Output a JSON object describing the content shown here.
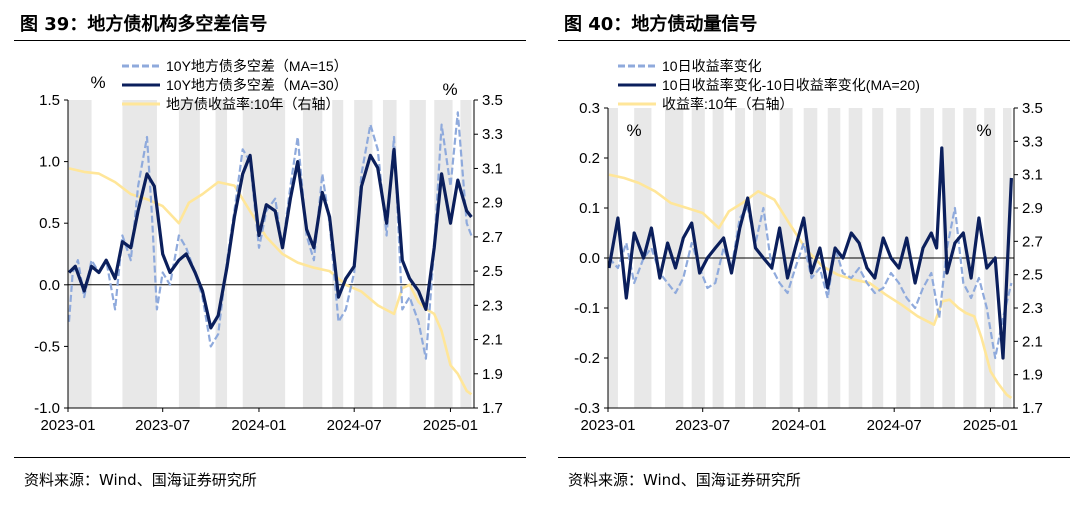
{
  "figures": [
    {
      "id": "fig39",
      "title": "图 39：地方债机构多空差信号",
      "source": "资料来源：Wind、国海证券研究所",
      "unit_left": "%",
      "unit_right": "%",
      "legend": [
        {
          "label": "10Y地方债多空差（MA=15）",
          "color": "#8faadc",
          "style": "dashed"
        },
        {
          "label": "10Y地方债多空差（MA=30）",
          "color": "#0b1f5c",
          "style": "solid"
        },
        {
          "label": "地方债收益率:10年（右轴）",
          "color": "#ffe699",
          "style": "solid"
        }
      ],
      "y_left_ticks": [
        "1.5",
        "1.0",
        "0.5",
        "0.0",
        "-0.5",
        "-1.0"
      ],
      "y_right_ticks": [
        "3.5",
        "3.3",
        "3.1",
        "2.9",
        "2.7",
        "2.5",
        "2.3",
        "2.1",
        "1.9",
        "1.7"
      ],
      "x_ticks": [
        "2023-01",
        "2023-07",
        "2024-01",
        "2024-07",
        "2025-01"
      ]
    },
    {
      "id": "fig40",
      "title": "图 40：地方债动量信号",
      "source": "资料来源：Wind、国海证券研究所",
      "unit_left": "%",
      "unit_right": "%",
      "legend": [
        {
          "label": "10日收益率变化",
          "color": "#8faadc",
          "style": "dashed"
        },
        {
          "label": "10日收益率变化-10日收益率变化(MA=20)",
          "color": "#0b1f5c",
          "style": "solid"
        },
        {
          "label": "收益率:10年（右轴）",
          "color": "#ffe699",
          "style": "solid"
        }
      ],
      "y_left_ticks": [
        "0.3",
        "0.2",
        "0.1",
        "0.0",
        "-0.1",
        "-0.2",
        "-0.3"
      ],
      "y_right_ticks": [
        "3.5",
        "3.3",
        "3.1",
        "2.9",
        "2.7",
        "2.5",
        "2.3",
        "2.1",
        "1.9",
        "1.7"
      ],
      "x_ticks": [
        "2023-01",
        "2023-07",
        "2024-01",
        "2024-07",
        "2025-01"
      ]
    }
  ],
  "chart_data": [
    {
      "type": "line",
      "x_range": [
        "2023-01-01",
        "2025-02-15"
      ],
      "ylim_left": [
        -1.0,
        1.5
      ],
      "ylim_right": [
        1.7,
        3.5
      ],
      "shaded_periods": [
        [
          "2023-01-01",
          "2023-02-15"
        ],
        [
          "2023-04-15",
          "2023-06-20"
        ],
        [
          "2023-08-01",
          "2023-09-10"
        ],
        [
          "2023-10-10",
          "2023-11-01"
        ],
        [
          "2023-12-01",
          "2024-02-20"
        ],
        [
          "2024-03-25",
          "2024-05-01"
        ],
        [
          "2024-05-20",
          "2024-06-10"
        ],
        [
          "2024-07-01",
          "2024-08-05"
        ],
        [
          "2024-08-25",
          "2024-09-20"
        ],
        [
          "2024-10-15",
          "2024-11-15"
        ],
        [
          "2024-12-01",
          "2025-01-05"
        ],
        [
          "2025-01-20",
          "2025-02-10"
        ]
      ],
      "series": [
        {
          "name": "10Y地方债多空差（MA=15）",
          "axis": "left",
          "x": [
            "2023-01-03",
            "2023-01-10",
            "2023-01-20",
            "2023-02-01",
            "2023-02-15",
            "2023-03-01",
            "2023-03-15",
            "2023-04-01",
            "2023-04-15",
            "2023-05-01",
            "2023-05-15",
            "2023-06-01",
            "2023-06-10",
            "2023-06-20",
            "2023-07-01",
            "2023-07-15",
            "2023-08-01",
            "2023-08-15",
            "2023-09-01",
            "2023-09-15",
            "2023-10-01",
            "2023-10-15",
            "2023-11-01",
            "2023-11-15",
            "2023-12-01",
            "2023-12-15",
            "2024-01-01",
            "2024-01-15",
            "2024-02-01",
            "2024-02-15",
            "2024-03-01",
            "2024-03-15",
            "2024-04-01",
            "2024-04-15",
            "2024-05-01",
            "2024-05-15",
            "2024-06-01",
            "2024-06-15",
            "2024-07-01",
            "2024-07-15",
            "2024-08-01",
            "2024-08-15",
            "2024-09-01",
            "2024-09-15",
            "2024-10-01",
            "2024-10-15",
            "2024-11-01",
            "2024-11-15",
            "2024-12-01",
            "2024-12-15",
            "2025-01-01",
            "2025-01-15",
            "2025-02-01",
            "2025-02-10"
          ],
          "values": [
            -0.3,
            0.1,
            0.2,
            -0.1,
            0.2,
            0.1,
            0.2,
            -0.2,
            0.4,
            0.2,
            0.8,
            1.2,
            0.6,
            -0.2,
            0.1,
            0.0,
            0.4,
            0.3,
            0.1,
            -0.1,
            -0.5,
            -0.4,
            0.2,
            0.6,
            1.1,
            1.0,
            0.3,
            0.6,
            0.7,
            0.3,
            0.8,
            1.2,
            0.4,
            0.2,
            0.9,
            0.5,
            -0.3,
            -0.2,
            0.1,
            0.9,
            1.3,
            1.1,
            0.4,
            1.2,
            -0.2,
            -0.1,
            -0.3,
            -0.6,
            0.3,
            1.3,
            0.8,
            1.4,
            0.5,
            0.4
          ]
        },
        {
          "name": "10Y地方债多空差（MA=30）",
          "axis": "left",
          "x": [
            "2023-01-03",
            "2023-01-15",
            "2023-02-01",
            "2023-02-15",
            "2023-03-01",
            "2023-03-15",
            "2023-04-01",
            "2023-04-15",
            "2023-05-01",
            "2023-05-15",
            "2023-06-01",
            "2023-06-15",
            "2023-07-01",
            "2023-07-15",
            "2023-08-01",
            "2023-08-15",
            "2023-09-01",
            "2023-09-15",
            "2023-10-01",
            "2023-10-15",
            "2023-11-01",
            "2023-11-15",
            "2023-12-01",
            "2023-12-15",
            "2024-01-01",
            "2024-01-15",
            "2024-02-01",
            "2024-02-15",
            "2024-03-01",
            "2024-03-15",
            "2024-04-01",
            "2024-04-15",
            "2024-05-01",
            "2024-05-15",
            "2024-06-01",
            "2024-06-15",
            "2024-07-01",
            "2024-07-15",
            "2024-08-01",
            "2024-08-15",
            "2024-09-01",
            "2024-09-15",
            "2024-10-01",
            "2024-10-15",
            "2024-11-01",
            "2024-11-15",
            "2024-12-01",
            "2024-12-15",
            "2025-01-01",
            "2025-01-15",
            "2025-02-01",
            "2025-02-10"
          ],
          "values": [
            0.1,
            0.15,
            -0.05,
            0.15,
            0.1,
            0.2,
            0.05,
            0.35,
            0.3,
            0.6,
            0.9,
            0.8,
            0.25,
            0.1,
            0.2,
            0.25,
            0.1,
            -0.05,
            -0.35,
            -0.25,
            0.15,
            0.55,
            0.9,
            1.05,
            0.4,
            0.65,
            0.6,
            0.3,
            0.7,
            1.0,
            0.45,
            0.3,
            0.75,
            0.55,
            -0.1,
            0.05,
            0.15,
            0.8,
            1.05,
            0.95,
            0.5,
            1.1,
            0.2,
            0.05,
            -0.05,
            -0.2,
            0.3,
            0.9,
            0.5,
            0.85,
            0.6,
            0.55
          ]
        },
        {
          "name": "地方债收益率:10年（右轴）",
          "axis": "right",
          "x": [
            "2023-01-03",
            "2023-02-01",
            "2023-03-01",
            "2023-04-01",
            "2023-05-01",
            "2023-06-01",
            "2023-07-01",
            "2023-08-01",
            "2023-08-20",
            "2023-09-15",
            "2023-10-15",
            "2023-11-15",
            "2023-12-15",
            "2024-01-15",
            "2024-02-15",
            "2024-03-15",
            "2024-04-15",
            "2024-05-15",
            "2024-06-15",
            "2024-07-15",
            "2024-08-15",
            "2024-09-15",
            "2024-10-01",
            "2024-10-15",
            "2024-11-01",
            "2024-11-15",
            "2024-12-01",
            "2024-12-15",
            "2025-01-01",
            "2025-01-15",
            "2025-02-01",
            "2025-02-10"
          ],
          "values": [
            3.1,
            3.08,
            3.07,
            3.02,
            2.95,
            2.92,
            2.88,
            2.78,
            2.9,
            2.95,
            3.02,
            3.0,
            2.85,
            2.7,
            2.6,
            2.55,
            2.52,
            2.5,
            2.42,
            2.38,
            2.3,
            2.25,
            2.4,
            2.42,
            2.32,
            2.28,
            2.25,
            2.15,
            1.95,
            1.9,
            1.8,
            1.78
          ]
        }
      ]
    },
    {
      "type": "line",
      "x_range": [
        "2023-01-01",
        "2025-02-15"
      ],
      "ylim_left": [
        -0.3,
        0.3
      ],
      "ylim_right": [
        1.7,
        3.5
      ],
      "shaded_periods": [
        [
          "2023-01-01",
          "2023-01-20"
        ],
        [
          "2023-02-20",
          "2023-03-25"
        ],
        [
          "2023-04-20",
          "2023-05-25"
        ],
        [
          "2023-06-10",
          "2023-07-05"
        ],
        [
          "2023-07-20",
          "2023-08-10"
        ],
        [
          "2023-09-01",
          "2023-09-20"
        ],
        [
          "2023-10-05",
          "2023-10-30"
        ],
        [
          "2023-11-25",
          "2023-12-20"
        ],
        [
          "2024-01-10",
          "2024-02-05"
        ],
        [
          "2024-02-25",
          "2024-03-20"
        ],
        [
          "2024-04-05",
          "2024-05-01"
        ],
        [
          "2024-05-20",
          "2024-06-10"
        ],
        [
          "2024-07-05",
          "2024-08-01"
        ],
        [
          "2024-08-20",
          "2024-09-15"
        ],
        [
          "2024-10-01",
          "2024-10-25"
        ],
        [
          "2024-11-10",
          "2024-12-05"
        ],
        [
          "2024-12-20",
          "2025-01-10"
        ],
        [
          "2025-01-25",
          "2025-02-10"
        ]
      ],
      "series": [
        {
          "name": "10日收益率变化",
          "axis": "left",
          "x": [
            "2023-01-03",
            "2023-01-20",
            "2023-02-05",
            "2023-02-20",
            "2023-03-10",
            "2023-03-25",
            "2023-04-10",
            "2023-04-25",
            "2023-05-10",
            "2023-05-25",
            "2023-06-10",
            "2023-06-25",
            "2023-07-10",
            "2023-07-25",
            "2023-08-10",
            "2023-08-25",
            "2023-09-10",
            "2023-09-25",
            "2023-10-10",
            "2023-10-25",
            "2023-11-10",
            "2023-11-25",
            "2023-12-10",
            "2023-12-25",
            "2024-01-10",
            "2024-01-25",
            "2024-02-10",
            "2024-02-25",
            "2024-03-10",
            "2024-03-25",
            "2024-04-10",
            "2024-04-25",
            "2024-05-10",
            "2024-05-25",
            "2024-06-10",
            "2024-06-25",
            "2024-07-10",
            "2024-07-25",
            "2024-08-10",
            "2024-08-25",
            "2024-09-10",
            "2024-09-25",
            "2024-10-10",
            "2024-10-25",
            "2024-11-10",
            "2024-11-25",
            "2024-12-10",
            "2024-12-25",
            "2025-01-10",
            "2025-01-25",
            "2025-02-10"
          ],
          "values": [
            0.0,
            -0.02,
            0.03,
            -0.05,
            0.0,
            0.02,
            -0.03,
            -0.05,
            -0.07,
            -0.04,
            0.03,
            -0.02,
            -0.06,
            -0.05,
            0.02,
            -0.02,
            0.08,
            0.1,
            0.03,
            0.1,
            -0.02,
            -0.05,
            -0.07,
            -0.02,
            0.03,
            -0.04,
            -0.02,
            -0.08,
            0.02,
            -0.03,
            -0.04,
            -0.02,
            -0.05,
            -0.07,
            -0.06,
            -0.03,
            -0.05,
            -0.08,
            -0.1,
            -0.06,
            -0.03,
            -0.12,
            0.02,
            0.1,
            -0.05,
            -0.08,
            -0.04,
            -0.1,
            -0.2,
            -0.12,
            -0.05
          ]
        },
        {
          "name": "10日收益率变化-10日收益率变化(MA=20)",
          "axis": "left",
          "x": [
            "2023-01-03",
            "2023-01-20",
            "2023-02-05",
            "2023-02-20",
            "2023-03-10",
            "2023-03-25",
            "2023-04-10",
            "2023-04-25",
            "2023-05-10",
            "2023-05-25",
            "2023-06-10",
            "2023-06-25",
            "2023-07-10",
            "2023-07-25",
            "2023-08-10",
            "2023-08-25",
            "2023-09-10",
            "2023-09-25",
            "2023-10-10",
            "2023-10-25",
            "2023-11-10",
            "2023-11-25",
            "2023-12-10",
            "2023-12-25",
            "2024-01-10",
            "2024-01-25",
            "2024-02-10",
            "2024-02-25",
            "2024-03-10",
            "2024-03-25",
            "2024-04-10",
            "2024-04-25",
            "2024-05-10",
            "2024-05-25",
            "2024-06-10",
            "2024-06-25",
            "2024-07-10",
            "2024-07-25",
            "2024-08-10",
            "2024-08-25",
            "2024-09-10",
            "2024-09-20",
            "2024-09-30",
            "2024-10-10",
            "2024-10-25",
            "2024-11-10",
            "2024-11-25",
            "2024-12-10",
            "2024-12-25",
            "2025-01-10",
            "2025-01-25",
            "2025-02-10"
          ],
          "values": [
            -0.02,
            0.08,
            -0.08,
            0.05,
            0.0,
            0.06,
            -0.04,
            0.03,
            -0.02,
            0.04,
            0.07,
            -0.03,
            0.0,
            0.02,
            0.04,
            -0.03,
            0.06,
            0.12,
            0.02,
            0.0,
            -0.02,
            0.06,
            -0.04,
            0.02,
            0.08,
            -0.03,
            0.02,
            -0.06,
            0.02,
            0.0,
            0.05,
            0.03,
            -0.02,
            -0.04,
            0.04,
            0.0,
            -0.02,
            0.04,
            -0.05,
            0.02,
            0.05,
            0.02,
            0.22,
            -0.03,
            0.03,
            0.05,
            -0.04,
            0.08,
            -0.02,
            0.0,
            -0.2,
            0.16
          ]
        },
        {
          "name": "收益率:10年（右轴）",
          "axis": "right",
          "x": [
            "2023-01-03",
            "2023-02-01",
            "2023-03-01",
            "2023-04-01",
            "2023-05-01",
            "2023-06-01",
            "2023-07-01",
            "2023-08-01",
            "2023-08-20",
            "2023-09-15",
            "2023-10-15",
            "2023-11-15",
            "2023-12-15",
            "2024-01-15",
            "2024-02-15",
            "2024-03-15",
            "2024-04-15",
            "2024-05-15",
            "2024-06-15",
            "2024-07-15",
            "2024-08-15",
            "2024-09-15",
            "2024-10-01",
            "2024-10-15",
            "2024-11-01",
            "2024-11-15",
            "2024-12-01",
            "2024-12-15",
            "2025-01-01",
            "2025-01-15",
            "2025-02-01",
            "2025-02-10"
          ],
          "values": [
            3.1,
            3.08,
            3.05,
            3.0,
            2.93,
            2.9,
            2.87,
            2.78,
            2.88,
            2.93,
            3.0,
            2.95,
            2.8,
            2.65,
            2.55,
            2.5,
            2.47,
            2.45,
            2.38,
            2.32,
            2.25,
            2.2,
            2.34,
            2.35,
            2.3,
            2.27,
            2.25,
            2.12,
            1.92,
            1.85,
            1.78,
            1.76
          ]
        }
      ]
    }
  ]
}
